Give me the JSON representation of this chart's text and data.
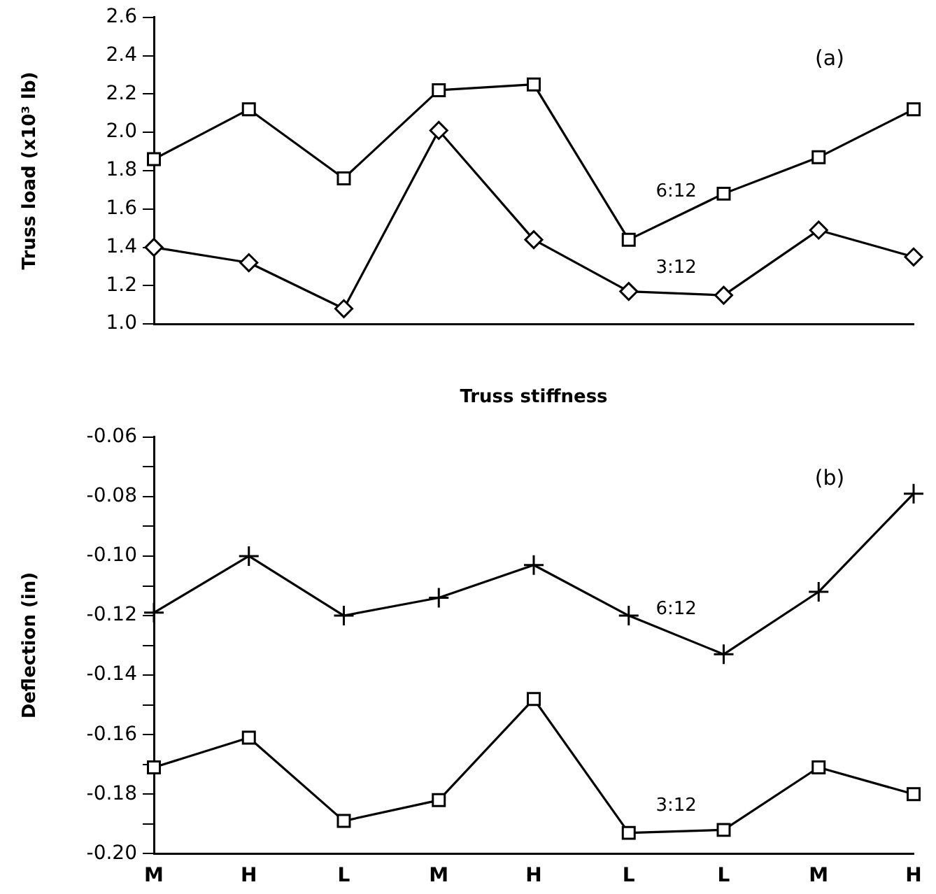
{
  "chart_data": [
    {
      "type": "line",
      "xlabel": "Truss stiffness",
      "ylabel": "Truss load (x10³ lb)",
      "annotations": [
        "(a)"
      ],
      "categories": [
        null,
        null,
        null,
        null,
        null,
        null,
        null,
        null,
        null
      ],
      "ylim": [
        1.0,
        2.6
      ],
      "yticks": [
        {
          "value": 1.0,
          "label": "1.0"
        },
        1.2,
        1.4,
        1.6,
        1.8,
        {
          "value": 2.0,
          "label": "2.0"
        },
        2.2,
        2.4,
        2.6
      ],
      "grid": false,
      "legend": false,
      "line_style": "solid",
      "series": [
        {
          "name": "6:12",
          "color": "#000000",
          "marker": "square",
          "values": [
            1.86,
            2.12,
            1.76,
            2.22,
            2.25,
            1.44,
            1.68,
            1.87,
            2.12
          ]
        },
        {
          "name": "3:12",
          "color": "#000000",
          "marker": "diamond",
          "values": [
            1.4,
            1.32,
            1.08,
            2.01,
            1.44,
            1.17,
            1.15,
            1.49,
            1.35
          ]
        }
      ]
    },
    {
      "type": "line",
      "ylabel": "Deflection (in)",
      "annotations": [
        "(b)"
      ],
      "categories": [
        "M",
        "H",
        "L",
        "M",
        "H",
        "L",
        "L",
        "M",
        "H"
      ],
      "ylim": [
        -0.2,
        -0.06
      ],
      "yticks": [
        {
          "value": -0.2,
          "label": "-0.20"
        },
        {
          "value": -0.19,
          "label": null
        },
        -0.18,
        {
          "value": -0.17,
          "label": null
        },
        -0.16,
        {
          "value": -0.15,
          "label": null
        },
        -0.14,
        {
          "value": -0.13,
          "label": null
        },
        -0.12,
        {
          "value": -0.11,
          "label": null
        },
        {
          "value": -0.1,
          "label": "-0.10"
        },
        {
          "value": -0.09,
          "label": null
        },
        -0.08,
        {
          "value": -0.07,
          "label": null
        },
        -0.06
      ],
      "grid": false,
      "legend": false,
      "line_style": "solid",
      "series": [
        {
          "name": "6:12",
          "color": "#000000",
          "marker": "cross",
          "values": [
            -0.119,
            -0.1,
            -0.12,
            -0.114,
            -0.103,
            -0.12,
            -0.133,
            -0.112,
            -0.079
          ]
        },
        {
          "name": "3:12",
          "color": "#000000",
          "marker": "square",
          "values": [
            -0.171,
            -0.161,
            -0.189,
            -0.182,
            -0.148,
            -0.193,
            -0.192,
            -0.171,
            -0.18
          ]
        }
      ]
    }
  ]
}
